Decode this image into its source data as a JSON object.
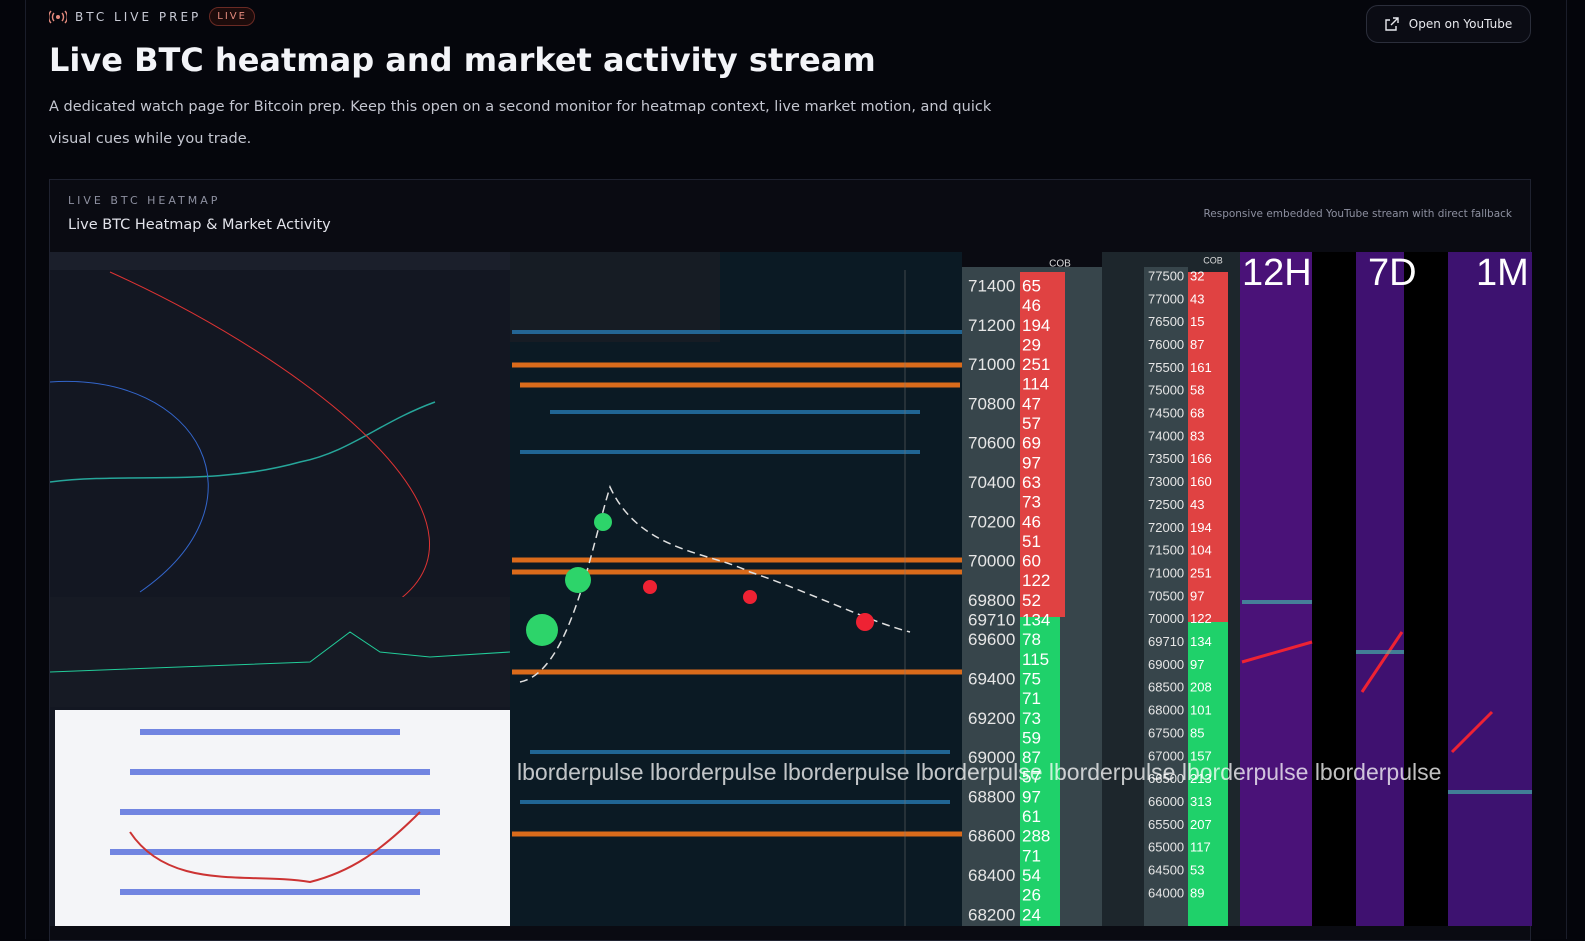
{
  "header": {
    "eyebrow": "BTC LIVE PREP",
    "badge": "LIVE",
    "button": "Open on YouTube",
    "title": "Live BTC heatmap and market activity stream",
    "description": "A dedicated watch page for Bitcoin prep. Keep this open on a second monitor for heatmap context, live market motion, and quick visual cues while you trade."
  },
  "card": {
    "eyebrow": "LIVE BTC HEATMAP",
    "title": "Live BTC Heatmap & Market Activity",
    "note": "Responsive embedded YouTube stream with direct fallback"
  },
  "stream": {
    "panels": [
      "12H",
      "7D",
      "1M"
    ],
    "ladder_label": "COB",
    "watermark": "lborderpulse lborderpulse lborderpulse lborderpulse lborderpulse lborderpulse lborderpulse",
    "ladder": [
      {
        "price": 71400,
        "size": 65
      },
      {
        "price": null,
        "size": 46
      },
      {
        "price": 71200,
        "size": 194
      },
      {
        "price": null,
        "size": 29
      },
      {
        "price": 71000,
        "size": 251
      },
      {
        "price": null,
        "size": 114
      },
      {
        "price": 70800,
        "size": 47
      },
      {
        "price": null,
        "size": 57
      },
      {
        "price": 70600,
        "size": 69
      },
      {
        "price": null,
        "size": 97
      },
      {
        "price": 70400,
        "size": 63
      },
      {
        "price": null,
        "size": 73
      },
      {
        "price": 70200,
        "size": 46
      },
      {
        "price": null,
        "size": 51
      },
      {
        "price": 70000,
        "size": 60
      },
      {
        "price": null,
        "size": 122
      },
      {
        "price": 69800,
        "size": 52
      },
      {
        "price": 69710,
        "size": 134
      },
      {
        "price": 69600,
        "size": 78
      },
      {
        "price": null,
        "size": 115
      },
      {
        "price": 69400,
        "size": 75
      },
      {
        "price": null,
        "size": 71
      },
      {
        "price": 69200,
        "size": 73
      },
      {
        "price": null,
        "size": 59
      },
      {
        "price": 69000,
        "size": 87
      },
      {
        "price": null,
        "size": 57
      },
      {
        "price": 68800,
        "size": 97
      },
      {
        "price": null,
        "size": 61
      },
      {
        "price": 68600,
        "size": 288
      },
      {
        "price": null,
        "size": 71
      },
      {
        "price": 68400,
        "size": 54
      },
      {
        "price": null,
        "size": 26
      },
      {
        "price": 68200,
        "size": 24
      }
    ],
    "ladder2": [
      {
        "price": 77500,
        "size": 32
      },
      {
        "price": 77000,
        "size": 43
      },
      {
        "price": 76500,
        "size": 15
      },
      {
        "price": 76000,
        "size": 87
      },
      {
        "price": 75500,
        "size": 161
      },
      {
        "price": 75000,
        "size": 58
      },
      {
        "price": 74500,
        "size": 68
      },
      {
        "price": 74000,
        "size": 83
      },
      {
        "price": 73500,
        "size": 166
      },
      {
        "price": 73000,
        "size": 160
      },
      {
        "price": 72500,
        "size": 43
      },
      {
        "price": 72000,
        "size": 194
      },
      {
        "price": 71500,
        "size": 104
      },
      {
        "price": 71000,
        "size": 251
      },
      {
        "price": 70500,
        "size": 97
      },
      {
        "price": 70000,
        "size": 122
      },
      {
        "price": 69710,
        "size": 134
      },
      {
        "price": 69000,
        "size": 97
      },
      {
        "price": 68500,
        "size": 208
      },
      {
        "price": 68000,
        "size": 101
      },
      {
        "price": 67500,
        "size": 85
      },
      {
        "price": 67000,
        "size": 157
      },
      {
        "price": 66500,
        "size": 213
      },
      {
        "price": 66000,
        "size": 313
      },
      {
        "price": 65500,
        "size": 207
      },
      {
        "price": 65000,
        "size": 117
      },
      {
        "price": 64500,
        "size": 53
      },
      {
        "price": 64000,
        "size": 89
      }
    ]
  }
}
